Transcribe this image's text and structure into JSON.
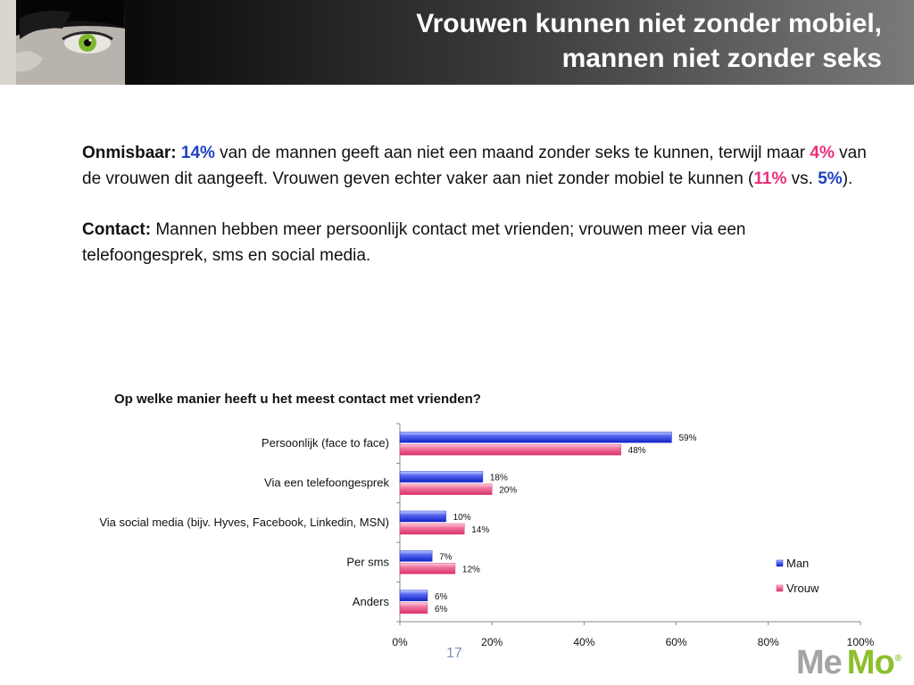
{
  "header": {
    "title_line1": "Vrouwen kunnen niet zonder mobiel,",
    "title_line2": "mannen niet zonder seks"
  },
  "paragraph1": {
    "label": "Onmisbaar:",
    "val_men_seks": "14%",
    "t1": " van de mannen geeft aan niet een maand zonder seks te kunnen, terwijl maar ",
    "val_women_seks": "4%",
    "t2": " van de vrouwen dit aangeeft. Vrouwen geven echter vaker aan niet zonder mobiel te kunnen (",
    "val_women_mobile": "11%",
    "t3": " vs. ",
    "val_men_mobile": "5%",
    "t4": ")."
  },
  "paragraph2": {
    "label": "Contact:",
    "text": " Mannen hebben meer persoonlijk contact met vrienden; vrouwen meer via een telefoongesprek, sms en social media."
  },
  "chart_data": {
    "type": "bar",
    "orientation": "horizontal",
    "title": "Op welke manier heeft u het meest contact met vrienden?",
    "categories": [
      "Persoonlijk (face to face)",
      "Via een telefoongesprek",
      "Via social media (bijv. Hyves, Facebook, Linkedin, MSN)",
      "Per sms",
      "Anders"
    ],
    "series": [
      {
        "name": "Man",
        "values": [
          59,
          18,
          10,
          7,
          6
        ],
        "color": "#1a2fd6"
      },
      {
        "name": "Vrouw",
        "values": [
          48,
          20,
          14,
          12,
          6
        ],
        "color": "#e8437a"
      }
    ],
    "xlim": [
      0,
      100
    ],
    "xticks": [
      "0%",
      "20%",
      "40%",
      "60%",
      "80%",
      "100%"
    ],
    "data_labels": true,
    "legend": "right"
  },
  "footer": {
    "page_number": "17"
  },
  "logo": {
    "me": "Me",
    "mo": "Mo",
    "reg": "®"
  }
}
